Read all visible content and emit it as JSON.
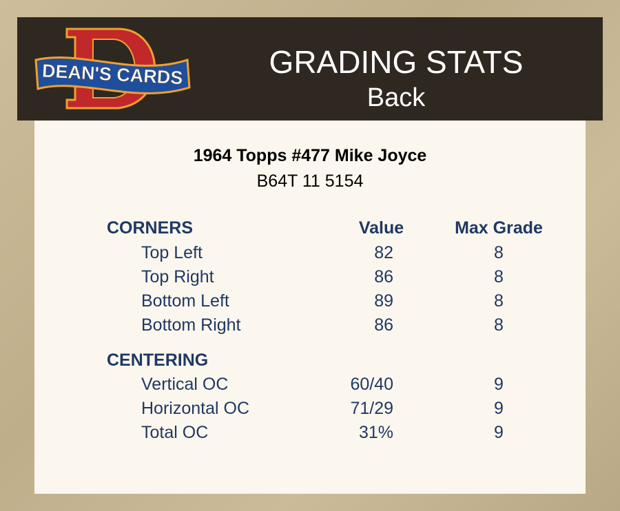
{
  "header": {
    "logo_text": "DEAN'S CARDS",
    "title": "GRADING STATS",
    "subtitle": "Back"
  },
  "card": {
    "title": "1964 Topps #477 Mike Joyce",
    "code": "B64T 11 5154"
  },
  "columns": {
    "value": "Value",
    "max_grade": "Max Grade"
  },
  "sections": [
    {
      "name": "CORNERS",
      "rows": [
        {
          "label": "Top Left",
          "value": "82",
          "max_grade": "8"
        },
        {
          "label": "Top Right",
          "value": "86",
          "max_grade": "8"
        },
        {
          "label": "Bottom Left",
          "value": "89",
          "max_grade": "8"
        },
        {
          "label": "Bottom Right",
          "value": "86",
          "max_grade": "8"
        }
      ]
    },
    {
      "name": "CENTERING",
      "rows": [
        {
          "label": "Vertical OC",
          "value": "60/40",
          "max_grade": "9"
        },
        {
          "label": "Horizontal OC",
          "value": "71/29",
          "max_grade": "9"
        },
        {
          "label": "Total OC",
          "value": "31%",
          "max_grade": "9"
        }
      ]
    }
  ],
  "colors": {
    "header_bg": "#2e2820",
    "panel_bg": "#fcf7ee",
    "text_blue": "#1f3864",
    "logo_red": "#c0282a",
    "logo_blue": "#1f4e9c"
  }
}
